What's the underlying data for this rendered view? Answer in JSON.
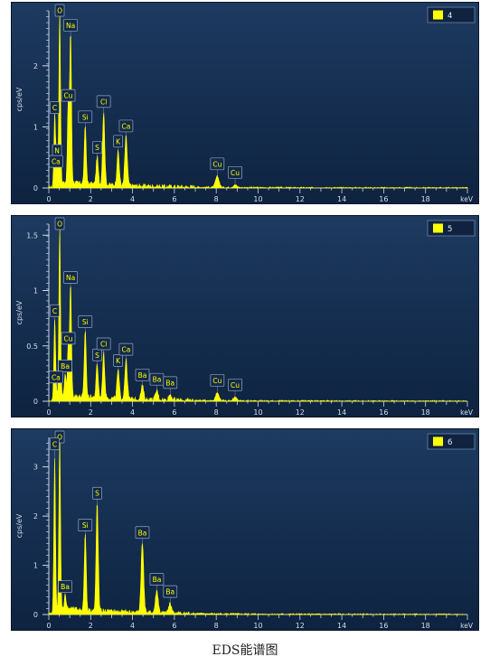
{
  "caption": "EDS能谱图",
  "chart_data": [
    {
      "type": "line",
      "legend_label": "4",
      "legend_position": "top-right",
      "ylabel": "cps/eV",
      "xlabel": "keV",
      "xlim": [
        0,
        20
      ],
      "ylim": [
        0,
        2.9
      ],
      "x_ticks": [
        "0",
        "2",
        "4",
        "6",
        "8",
        "10",
        "12",
        "14",
        "16",
        "18"
      ],
      "y_ticks": [
        0,
        1,
        2
      ],
      "peaks": [
        {
          "label": "O",
          "x": 0.52,
          "y": 2.85
        },
        {
          "label": "Na",
          "x": 1.04,
          "y": 2.45
        },
        {
          "label": "Cu",
          "x": 0.93,
          "y": 1.3
        },
        {
          "label": "C",
          "x": 0.28,
          "y": 1.1
        },
        {
          "label": "N",
          "x": 0.39,
          "y": 0.4
        },
        {
          "label": "Ca",
          "x": 0.34,
          "y": 0.22
        },
        {
          "label": "Si",
          "x": 1.74,
          "y": 0.95
        },
        {
          "label": "S",
          "x": 2.31,
          "y": 0.45
        },
        {
          "label": "Cl",
          "x": 2.62,
          "y": 1.2
        },
        {
          "label": "K",
          "x": 3.31,
          "y": 0.55
        },
        {
          "label": "Ca",
          "x": 3.69,
          "y": 0.8
        },
        {
          "label": "Cu",
          "x": 8.05,
          "y": 0.18
        },
        {
          "label": "Cu",
          "x": 8.9,
          "y": 0.04
        }
      ]
    },
    {
      "type": "line",
      "legend_label": "5",
      "legend_position": "top-right",
      "ylabel": "cps/eV",
      "xlabel": "keV",
      "xlim": [
        0,
        20
      ],
      "ylim": [
        0,
        1.6
      ],
      "x_ticks": [
        "0",
        "2",
        "4",
        "6",
        "8",
        "10",
        "12",
        "14",
        "16",
        "18"
      ],
      "y_ticks": [
        "0",
        "0.5",
        "1",
        "1.5"
      ],
      "peaks": [
        {
          "label": "O",
          "x": 0.52,
          "y": 1.55
        },
        {
          "label": "Na",
          "x": 1.04,
          "y": 1.0
        },
        {
          "label": "C",
          "x": 0.28,
          "y": 0.7
        },
        {
          "label": "Cu",
          "x": 0.93,
          "y": 0.45
        },
        {
          "label": "Ba",
          "x": 0.78,
          "y": 0.2
        },
        {
          "label": "Ca",
          "x": 0.34,
          "y": 0.1
        },
        {
          "label": "Si",
          "x": 1.74,
          "y": 0.6
        },
        {
          "label": "S",
          "x": 2.31,
          "y": 0.3
        },
        {
          "label": "Cl",
          "x": 2.62,
          "y": 0.4
        },
        {
          "label": "K",
          "x": 3.31,
          "y": 0.25
        },
        {
          "label": "Ca",
          "x": 3.69,
          "y": 0.35
        },
        {
          "label": "Ba",
          "x": 4.47,
          "y": 0.12
        },
        {
          "label": "Ba",
          "x": 5.16,
          "y": 0.08
        },
        {
          "label": "Ba",
          "x": 5.8,
          "y": 0.05
        },
        {
          "label": "Cu",
          "x": 8.05,
          "y": 0.07
        },
        {
          "label": "Cu",
          "x": 8.9,
          "y": 0.03
        }
      ]
    },
    {
      "type": "line",
      "legend_label": "6",
      "legend_position": "top-right",
      "ylabel": "cps/eV",
      "xlabel": "keV",
      "xlim": [
        0,
        20
      ],
      "ylim": [
        0,
        3.6
      ],
      "x_ticks": [
        "0",
        "2",
        "4",
        "6",
        "8",
        "10",
        "12",
        "14",
        "16",
        "18"
      ],
      "y_ticks": [
        "0",
        "1",
        "2",
        "3"
      ],
      "peaks": [
        {
          "label": "O",
          "x": 0.52,
          "y": 3.5
        },
        {
          "label": "C",
          "x": 0.28,
          "y": 3.2
        },
        {
          "label": "Ba",
          "x": 0.78,
          "y": 0.3
        },
        {
          "label": "S",
          "x": 2.31,
          "y": 2.2
        },
        {
          "label": "Si",
          "x": 1.74,
          "y": 1.55
        },
        {
          "label": "Ba",
          "x": 4.47,
          "y": 1.4
        },
        {
          "label": "Ba",
          "x": 5.16,
          "y": 0.45
        },
        {
          "label": "Ba",
          "x": 5.8,
          "y": 0.2
        }
      ]
    }
  ],
  "colors": {
    "panel_bg_top": "#1d3a60",
    "panel_bg_bottom": "#0e2340",
    "spectrum": "#ffff00",
    "axis": "#c9d6e8",
    "text": "#d3ddea"
  }
}
